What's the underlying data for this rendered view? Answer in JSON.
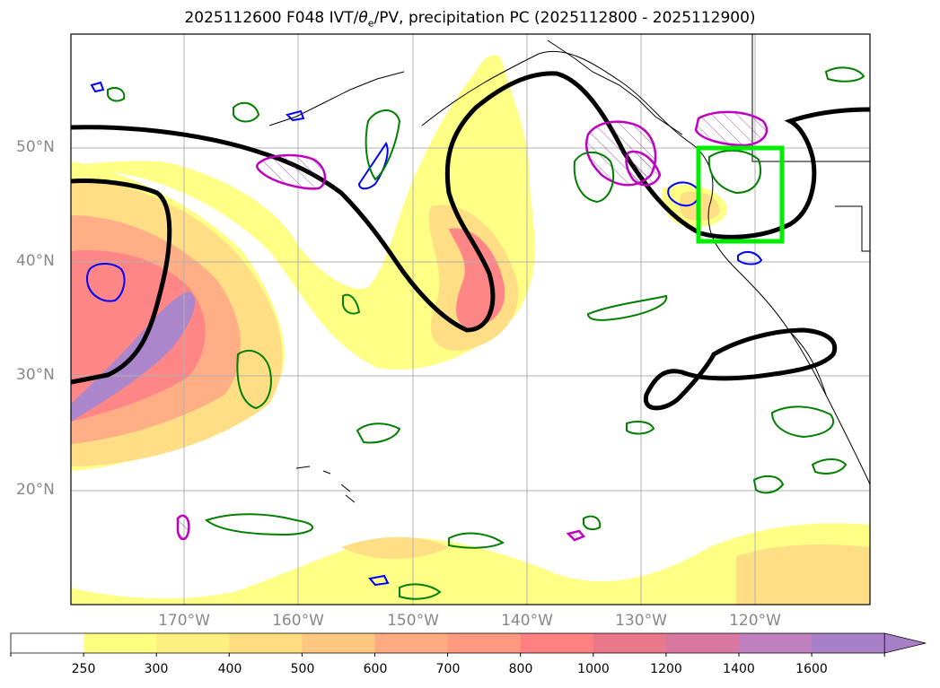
{
  "chart_data": {
    "type": "map-contour",
    "title": "2025112600 F048 IVT/θe/PV, precipitation PC (2025112800 - 2025112900)",
    "title_parts": {
      "prefix": "2025112600 F048 IVT/",
      "theta": "θ",
      "theta_sub": "e",
      "suffix": "/PV, precipitation PC (2025112800 - 2025112900)"
    },
    "lat_labels": [
      "20°N",
      "30°N",
      "40°N",
      "50°N"
    ],
    "lon_labels": [
      "170°W",
      "160°W",
      "150°W",
      "140°W",
      "130°W",
      "120°W"
    ],
    "lat_range": [
      10,
      60
    ],
    "lon_range": [
      -180,
      -110
    ],
    "colorbar": {
      "ticks": [
        "250",
        "300",
        "400",
        "500",
        "600",
        "700",
        "800",
        "1000",
        "1200",
        "1400",
        "1600"
      ],
      "colors": [
        "#ffffff",
        "#ffff80",
        "#ffee80",
        "#ffdd80",
        "#ffc880",
        "#ffaa80",
        "#ff9a80",
        "#ff8080",
        "#e8788a",
        "#d878a0",
        "#c080c0",
        "#a880c8"
      ],
      "extend": "max"
    },
    "highlight_box": {
      "lat": [
        42,
        50
      ],
      "lon": [
        -125,
        -117.5
      ],
      "color": "#00ee00"
    },
    "contour_colors": {
      "pv": "#000000",
      "theta_e": "#0000ff",
      "precip": "#008000",
      "ivt_anomaly": "#c000c0"
    }
  }
}
